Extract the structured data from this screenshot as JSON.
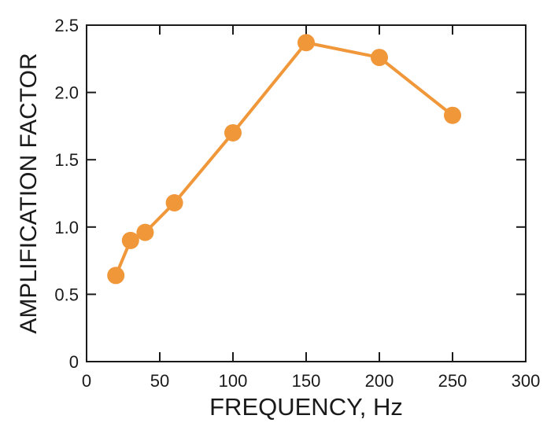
{
  "chart_data": {
    "type": "line",
    "xlabel": "FREQUENCY, Hz",
    "ylabel": "AMPLIFICATION FACTOR",
    "xlim": [
      0,
      300
    ],
    "ylim": [
      0,
      2.5
    ],
    "xticks": [
      0,
      50,
      100,
      150,
      200,
      250,
      300
    ],
    "yticks": [
      0,
      0.5,
      1.0,
      1.5,
      2.0,
      2.5
    ],
    "xtick_labels": [
      "0",
      "50",
      "100",
      "150",
      "200",
      "250",
      "300"
    ],
    "ytick_labels": [
      "0",
      "0.5",
      "1.0",
      "1.5",
      "2.0",
      "2.5"
    ],
    "grid": false,
    "series": [
      {
        "x": [
          20,
          30,
          40,
          60,
          100,
          150,
          200,
          250
        ],
        "y": [
          0.64,
          0.9,
          0.96,
          1.18,
          1.7,
          2.37,
          2.26,
          1.83
        ],
        "color": "#f0973a"
      }
    ]
  }
}
